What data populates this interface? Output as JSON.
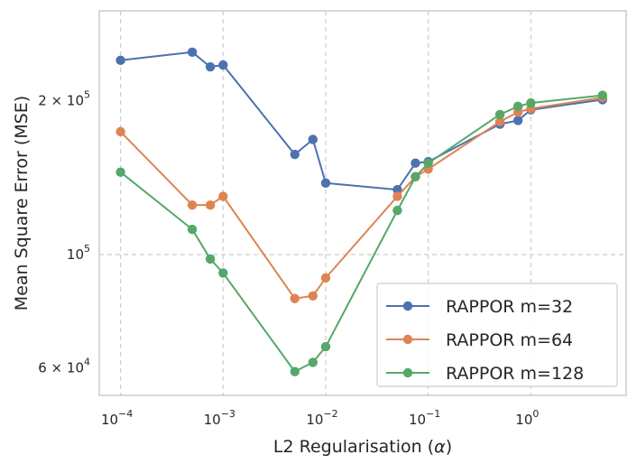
{
  "chart_data": {
    "type": "line",
    "xscale": "log",
    "yscale": "log",
    "xlabel_main": "L2 Regularisation (",
    "xlabel_symbol": "α",
    "xlabel_close": ")",
    "ylabel": "Mean Square Error (MSE)",
    "xlim": [
      6.2e-05,
      8.5
    ],
    "ylim": [
      53000,
      300000
    ],
    "grid": true,
    "legend_position": "lower-right",
    "x_ticks": [
      {
        "value": 0.0001,
        "base": "10",
        "exp": "−4"
      },
      {
        "value": 0.001,
        "base": "10",
        "exp": "−3"
      },
      {
        "value": 0.01,
        "base": "10",
        "exp": "−2"
      },
      {
        "value": 0.1,
        "base": "10",
        "exp": "−1"
      },
      {
        "value": 1,
        "base": "10",
        "exp": "0"
      }
    ],
    "y_ticks": [
      {
        "value": 100000,
        "mant": "",
        "base": "10",
        "exp": "5"
      },
      {
        "value": 200000,
        "mant": "2 × ",
        "base": "10",
        "exp": "5"
      },
      {
        "value": 60000,
        "mant": "6 × ",
        "base": "10",
        "exp": "4"
      }
    ],
    "series": [
      {
        "name": "RAPPOR m=32",
        "color": "#4c72b0",
        "x": [
          0.0001,
          0.0005,
          0.00075,
          0.001,
          0.005,
          0.0075,
          0.01,
          0.05,
          0.075,
          0.1,
          0.5,
          0.75,
          1,
          5
        ],
        "y": [
          240000,
          249000,
          233000,
          235000,
          157000,
          168000,
          138000,
          134000,
          151000,
          152000,
          180000,
          183000,
          192000,
          201000
        ]
      },
      {
        "name": "RAPPOR m=64",
        "color": "#dd8452",
        "x": [
          0.0001,
          0.0005,
          0.00075,
          0.001,
          0.005,
          0.0075,
          0.01,
          0.05,
          0.075,
          0.1,
          0.5,
          0.75,
          1,
          5
        ],
        "y": [
          174000,
          125000,
          125000,
          130000,
          82000,
          83000,
          90000,
          130000,
          142000,
          147000,
          182000,
          190000,
          193000,
          203000
        ]
      },
      {
        "name": "RAPPOR m=128",
        "color": "#55a868",
        "x": [
          0.0001,
          0.0005,
          0.00075,
          0.001,
          0.005,
          0.0075,
          0.01,
          0.05,
          0.075,
          0.1,
          0.5,
          0.75,
          1,
          5
        ],
        "y": [
          145000,
          112000,
          98000,
          92000,
          59000,
          61500,
          66000,
          122000,
          142000,
          151000,
          188000,
          195000,
          198000,
          205000
        ]
      }
    ]
  }
}
